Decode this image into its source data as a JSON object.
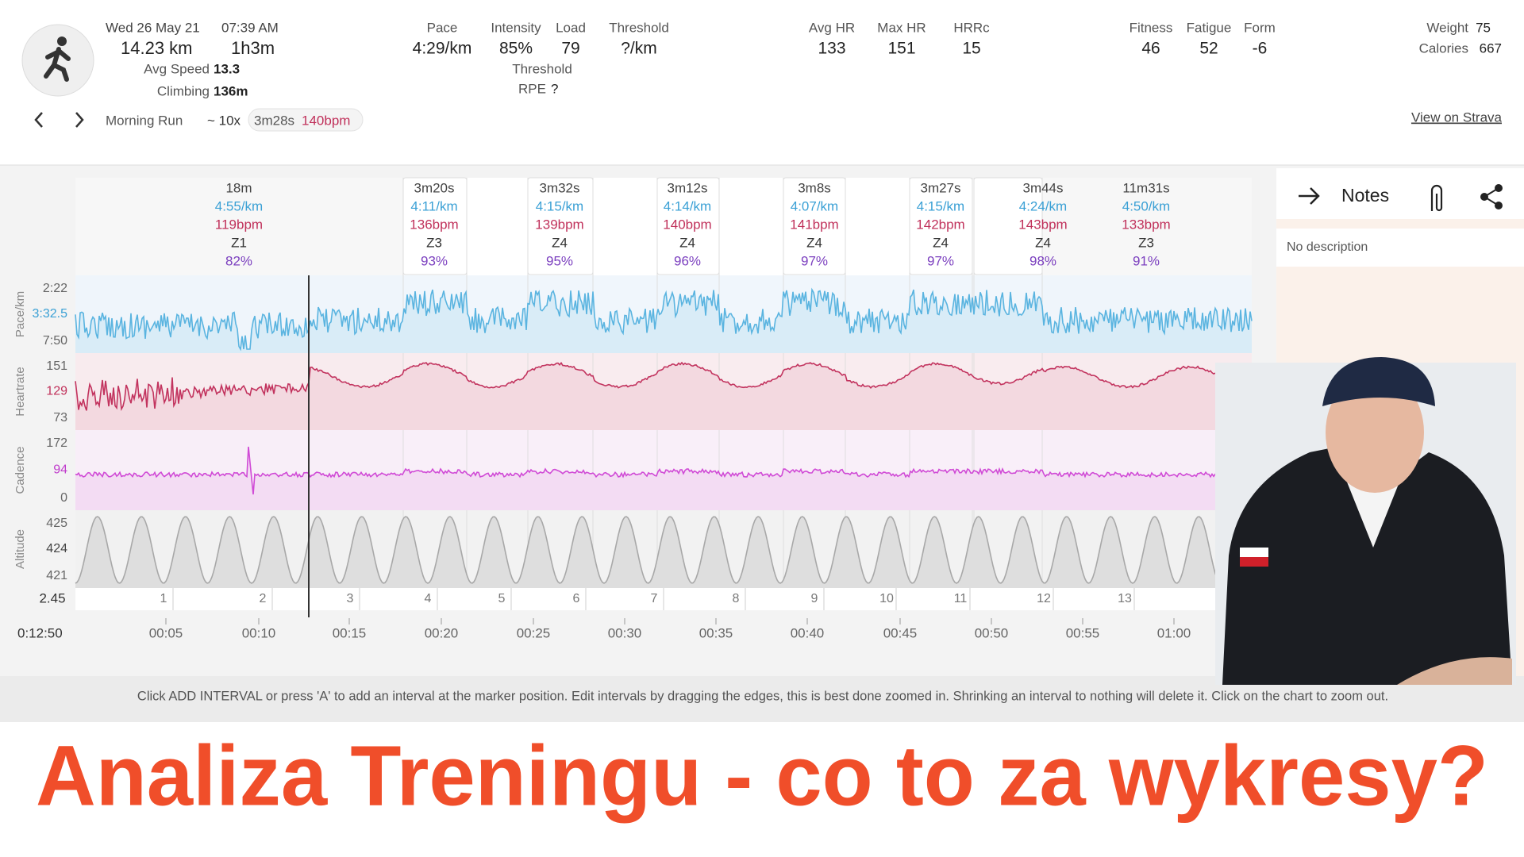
{
  "header": {
    "date": "Wed 26 May 21",
    "time": "07:39 AM",
    "distance": "14.23 km",
    "duration": "1h3m",
    "avg_speed": {
      "label": "Avg Speed",
      "value": "13.3"
    },
    "climbing": {
      "label": "Climbing",
      "value": "136m"
    },
    "activity_name": "Morning Run",
    "interval_summary": "~ 10x",
    "interval_chip": [
      "3m28s",
      "140bpm"
    ],
    "stats": [
      {
        "label": "Pace",
        "value": "4:29/km"
      },
      {
        "label": "Intensity",
        "value": "85%"
      },
      {
        "label": "Load",
        "value": "79"
      },
      {
        "label": "Threshold",
        "value": "?/km"
      },
      {
        "label": "Avg HR",
        "value": "133"
      },
      {
        "label": "Max HR",
        "value": "151"
      },
      {
        "label": "HRRc",
        "value": "15"
      },
      {
        "label": "Fitness",
        "value": "46"
      },
      {
        "label": "Fatigue",
        "value": "52"
      },
      {
        "label": "Form",
        "value": "-6"
      }
    ],
    "threshold_rpe": {
      "label": [
        "Threshold",
        "RPE"
      ],
      "value": "?"
    },
    "weight": {
      "label": "Weight",
      "value": "75"
    },
    "calories": {
      "label": "Calories",
      "value": "667"
    },
    "strava_link": "View on Strava"
  },
  "intervals": [
    {
      "duration": "18m",
      "pace": "4:55/km",
      "hr": "119bpm",
      "zone": "Z1",
      "percent": "82%"
    },
    {
      "duration": "3m20s",
      "pace": "4:11/km",
      "hr": "136bpm",
      "zone": "Z3",
      "percent": "93%"
    },
    {
      "duration": "3m32s",
      "pace": "4:15/km",
      "hr": "139bpm",
      "zone": "Z4",
      "percent": "95%"
    },
    {
      "duration": "3m12s",
      "pace": "4:14/km",
      "hr": "140bpm",
      "zone": "Z4",
      "percent": "96%"
    },
    {
      "duration": "3m8s",
      "pace": "4:07/km",
      "hr": "141bpm",
      "zone": "Z4",
      "percent": "97%"
    },
    {
      "duration": "3m27s",
      "pace": "4:15/km",
      "hr": "142bpm",
      "zone": "Z4",
      "percent": "97%"
    },
    {
      "duration": "3m44s",
      "pace": "4:24/km",
      "hr": "143bpm",
      "zone": "Z4",
      "percent": "98%"
    },
    {
      "duration": "11m31s",
      "pace": "4:50/km",
      "hr": "133bpm",
      "zone": "Z3",
      "percent": "91%"
    }
  ],
  "chart": {
    "rows": [
      {
        "name": "Pace/km",
        "ticks": [
          "2:22",
          "3:32.5",
          "7:50"
        ]
      },
      {
        "name": "Heartrate",
        "ticks": [
          "151",
          "129",
          "73"
        ]
      },
      {
        "name": "Cadence",
        "ticks": [
          "172",
          "94",
          "0"
        ]
      },
      {
        "name": "Altitude",
        "ticks": [
          "425",
          "424",
          "421"
        ]
      }
    ],
    "lap_row_label": "2.45",
    "laps": [
      "1",
      "2",
      "3",
      "4",
      "5",
      "6",
      "7",
      "8",
      "9",
      "10",
      "11",
      "12",
      "13"
    ],
    "cursor_time": "0:12:50",
    "time_ticks": [
      "00:05",
      "00:10",
      "00:15",
      "00:20",
      "00:25",
      "00:30",
      "00:35",
      "00:40",
      "00:45",
      "00:50",
      "00:55",
      "01:00"
    ]
  },
  "notes": {
    "title": "Notes",
    "description": "No description"
  },
  "hint": "Click ADD INTERVAL or press 'A' to add an interval at the marker position. Edit intervals by dragging the edges, this is best done zoomed in. Shrinking an interval to nothing will delete it. Click on the chart to zoom out.",
  "banner": "Analiza Treningu - co to za wykresy?"
}
